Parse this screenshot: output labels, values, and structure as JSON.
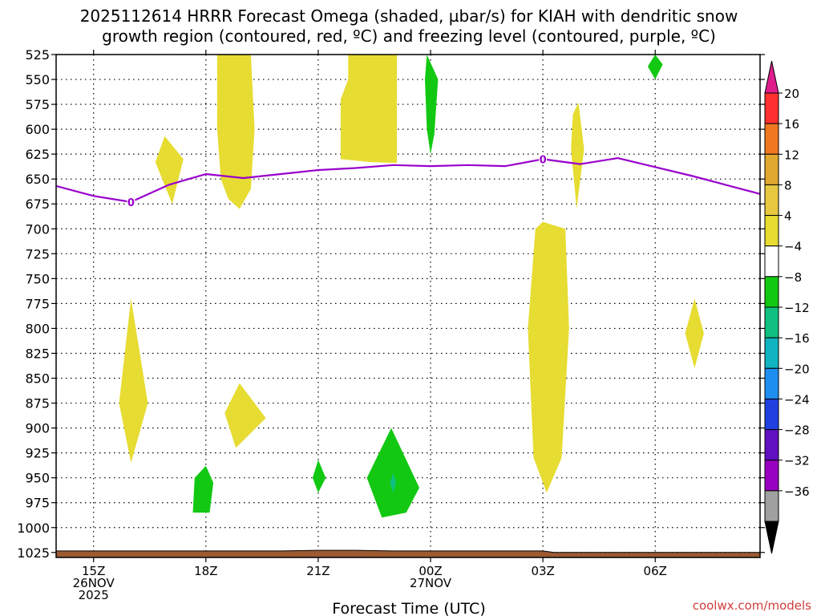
{
  "chart_data": {
    "type": "heatmap",
    "title_line1": "2025112614 HRRR Forecast Omega (shaded, µbar/s) for KIAH with dendritic snow",
    "title_line2": "growth region (contoured, red, ºC) and freezing level (contoured, purple, ºC)",
    "xlabel": "Forecast Time (UTC)",
    "ylabel": "Pressure (hPa)",
    "x_range_hours": [
      -1.0,
      17.8
    ],
    "y_range_hpa": [
      525,
      1030
    ],
    "x_ticks": [
      {
        "hour": 0,
        "lines": [
          "15Z",
          "26NOV",
          "2025"
        ]
      },
      {
        "hour": 3,
        "lines": [
          "18Z"
        ]
      },
      {
        "hour": 6,
        "lines": [
          "21Z"
        ]
      },
      {
        "hour": 9,
        "lines": [
          "00Z",
          "27NOV"
        ]
      },
      {
        "hour": 12,
        "lines": [
          "03Z"
        ]
      },
      {
        "hour": 15,
        "lines": [
          "06Z"
        ]
      }
    ],
    "y_ticks": [
      525,
      550,
      575,
      600,
      625,
      650,
      675,
      700,
      725,
      750,
      775,
      800,
      825,
      850,
      875,
      900,
      925,
      950,
      975,
      1000,
      1025
    ],
    "grid": true,
    "colorbar": {
      "labels": [
        "20",
        "16",
        "12",
        "8",
        "4",
        "−4",
        "−8",
        "−12",
        "−16",
        "−20",
        "−24",
        "−28",
        "−32",
        "−36"
      ],
      "colors": [
        "#ff3030",
        "#f07820",
        "#e0a830",
        "#e8c840",
        "#e6dc32",
        "#ffffff",
        "#12c812",
        "#10c080",
        "#10b4c0",
        "#1e8ff0",
        "#2040e0",
        "#6010c0",
        "#9800c0",
        "#a0a0a0"
      ],
      "top_arrow_color": "#e01c8c",
      "bottom_arrow_color": "#000000"
    },
    "omega_regions": [
      {
        "color": "#e6dc32",
        "value_range": "4 to 8",
        "points": [
          [
            3.3,
            525
          ],
          [
            4.2,
            525
          ],
          [
            4.3,
            600
          ],
          [
            4.2,
            660
          ],
          [
            3.9,
            680
          ],
          [
            3.6,
            670
          ],
          [
            3.4,
            650
          ],
          [
            3.3,
            600
          ]
        ]
      },
      {
        "color": "#e6dc32",
        "value_range": "4 to 8",
        "points": [
          [
            6.8,
            525
          ],
          [
            8.1,
            525
          ],
          [
            8.1,
            634
          ],
          [
            7.4,
            633
          ],
          [
            6.6,
            630
          ],
          [
            6.6,
            570
          ],
          [
            6.8,
            550
          ]
        ]
      },
      {
        "color": "#e6dc32",
        "value_range": "4 to 8",
        "points": [
          [
            1.9,
            607
          ],
          [
            2.4,
            630
          ],
          [
            2.1,
            675
          ],
          [
            1.65,
            633
          ]
        ]
      },
      {
        "color": "#e6dc32",
        "value_range": "4 to 8",
        "points": [
          [
            12.95,
            573
          ],
          [
            13.1,
            620
          ],
          [
            12.9,
            680
          ],
          [
            12.75,
            620
          ],
          [
            12.8,
            585
          ]
        ]
      },
      {
        "color": "#e6dc32",
        "value_range": "4 to 8",
        "points": [
          [
            12.0,
            693
          ],
          [
            12.6,
            700
          ],
          [
            12.7,
            800
          ],
          [
            12.5,
            930
          ],
          [
            12.1,
            965
          ],
          [
            11.75,
            930
          ],
          [
            11.6,
            800
          ],
          [
            11.8,
            700
          ]
        ]
      },
      {
        "color": "#e6dc32",
        "value_range": "4 to 8",
        "points": [
          [
            1.0,
            770
          ],
          [
            1.45,
            875
          ],
          [
            1.0,
            935
          ],
          [
            0.68,
            875
          ]
        ]
      },
      {
        "color": "#e6dc32",
        "value_range": "4 to 8",
        "points": [
          [
            3.9,
            855
          ],
          [
            4.6,
            890
          ],
          [
            3.8,
            920
          ],
          [
            3.5,
            885
          ]
        ]
      },
      {
        "color": "#e6dc32",
        "value_range": "4 to 8",
        "points": [
          [
            16.05,
            770
          ],
          [
            16.3,
            805
          ],
          [
            16.05,
            840
          ],
          [
            15.8,
            805
          ]
        ]
      },
      {
        "color": "#12c812",
        "value_range": "-4 to -8",
        "points": [
          [
            8.9,
            525
          ],
          [
            9.2,
            550
          ],
          [
            9.1,
            605
          ],
          [
            9.0,
            625
          ],
          [
            8.9,
            600
          ],
          [
            8.85,
            550
          ]
        ]
      },
      {
        "color": "#12c812",
        "value_range": "-4 to -8",
        "points": [
          [
            15.0,
            525
          ],
          [
            15.2,
            535
          ],
          [
            15.0,
            550
          ],
          [
            14.8,
            537
          ]
        ]
      },
      {
        "color": "#12c812",
        "value_range": "-4 to -8",
        "points": [
          [
            7.95,
            900
          ],
          [
            8.7,
            960
          ],
          [
            8.35,
            985
          ],
          [
            7.7,
            990
          ],
          [
            7.3,
            950
          ]
        ]
      },
      {
        "color": "#12c812",
        "value_range": "-4 to -8",
        "points": [
          [
            3.0,
            938
          ],
          [
            3.2,
            955
          ],
          [
            3.1,
            985
          ],
          [
            2.65,
            985
          ],
          [
            2.7,
            950
          ]
        ]
      },
      {
        "color": "#12c812",
        "value_range": "-4 to -8",
        "points": [
          [
            6.0,
            932
          ],
          [
            6.2,
            950
          ],
          [
            6.0,
            965
          ],
          [
            5.85,
            950
          ]
        ]
      },
      {
        "color": "#10c080",
        "value_range": "-8 to -12",
        "points": [
          [
            8.0,
            945
          ],
          [
            8.08,
            955
          ],
          [
            8.0,
            965
          ],
          [
            7.92,
            955
          ]
        ]
      }
    ],
    "freezing_level": {
      "label": "0",
      "color": "#9900cc",
      "points": [
        [
          -1.0,
          657
        ],
        [
          0.0,
          667
        ],
        [
          1.0,
          673
        ],
        [
          2.0,
          656
        ],
        [
          3.0,
          645
        ],
        [
          4.0,
          649
        ],
        [
          5.0,
          645
        ],
        [
          6.0,
          641
        ],
        [
          7.0,
          639
        ],
        [
          8.0,
          636
        ],
        [
          9.0,
          637
        ],
        [
          10.0,
          636
        ],
        [
          11.0,
          637
        ],
        [
          12.0,
          630
        ],
        [
          13.0,
          635
        ],
        [
          14.0,
          629
        ],
        [
          15.0,
          638
        ],
        [
          16.0,
          647
        ],
        [
          17.0,
          657
        ],
        [
          17.8,
          665
        ]
      ],
      "label_points": [
        [
          1.0,
          673
        ],
        [
          12.0,
          630
        ]
      ]
    },
    "surface": {
      "color": "#9c5a32",
      "edge_color": "#000000",
      "top_points": [
        [
          -1.0,
          1023.5
        ],
        [
          5.0,
          1023.5
        ],
        [
          6.0,
          1022.8
        ],
        [
          7.0,
          1022.8
        ],
        [
          8.0,
          1023.5
        ],
        [
          12.0,
          1023.5
        ],
        [
          12.3,
          1025
        ],
        [
          17.8,
          1025
        ]
      ]
    }
  },
  "footer": {
    "credit": "coolwx.com/models"
  }
}
